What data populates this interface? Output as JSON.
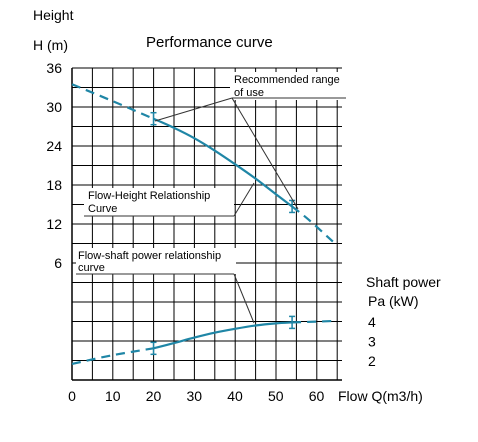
{
  "chart_data": {
    "type": "line",
    "title": "Performance curve",
    "xlabel": "Flow Q(m3/h)",
    "ylabel_left_line1": "Height",
    "ylabel_left_line2": "H (m)",
    "ylabel_right_line1": "Shaft power",
    "ylabel_right_line2": "Pa (kW)",
    "x_ticks": [
      "0",
      "10",
      "20",
      "30",
      "40",
      "50",
      "60"
    ],
    "y_left_ticks": [
      "36",
      "30",
      "24",
      "18",
      "12",
      "6"
    ],
    "y_right_ticks": [
      "4",
      "3",
      "2"
    ],
    "xlim": [
      0,
      66
    ],
    "ylim_left": [
      6,
      36
    ],
    "ylim_right": [
      1.5,
      4.5
    ],
    "grid": true,
    "series": [
      {
        "name": "Flow-Height Relationship Curve",
        "axis": "left",
        "dashed": [
          {
            "x": 0,
            "y": 33.5
          },
          {
            "x": 10,
            "y": 30.9
          },
          {
            "x": 20,
            "y": 28.2
          }
        ],
        "solid": [
          {
            "x": 20,
            "y": 28.2
          },
          {
            "x": 25,
            "y": 26.8
          },
          {
            "x": 30,
            "y": 25.2
          },
          {
            "x": 35,
            "y": 23.3
          },
          {
            "x": 40,
            "y": 21.2
          },
          {
            "x": 45,
            "y": 19.0
          },
          {
            "x": 50,
            "y": 16.6
          },
          {
            "x": 54,
            "y": 14.7
          }
        ],
        "dashed_end": [
          {
            "x": 54,
            "y": 14.7
          },
          {
            "x": 58,
            "y": 12.7
          },
          {
            "x": 64,
            "y": 9.3
          }
        ]
      },
      {
        "name": "Flow-shaft power relationship curve",
        "axis": "right",
        "dashed": [
          {
            "x": 0,
            "y": 1.85
          },
          {
            "x": 10,
            "y": 2.3
          },
          {
            "x": 20,
            "y": 2.65
          }
        ],
        "solid": [
          {
            "x": 20,
            "y": 2.65
          },
          {
            "x": 25,
            "y": 2.92
          },
          {
            "x": 30,
            "y": 3.2
          },
          {
            "x": 35,
            "y": 3.45
          },
          {
            "x": 40,
            "y": 3.65
          },
          {
            "x": 45,
            "y": 3.82
          },
          {
            "x": 50,
            "y": 3.93
          },
          {
            "x": 54,
            "y": 3.98
          }
        ],
        "dashed_end": [
          {
            "x": 54,
            "y": 3.98
          },
          {
            "x": 60,
            "y": 4.02
          },
          {
            "x": 64,
            "y": 4.05
          }
        ]
      }
    ],
    "range_marks": [
      {
        "series": 0,
        "x": 20
      },
      {
        "series": 0,
        "x": 54
      },
      {
        "series": 1,
        "x": 20
      },
      {
        "series": 1,
        "x": 54
      }
    ],
    "annotations": {
      "range_line1": "Recommended range",
      "range_line2": "of use",
      "fh_line1": "Flow-Height Relationship",
      "fh_line2": "Curve",
      "fp_line1": "Flow-shaft power relationship",
      "fp_line2": "curve"
    },
    "colors": {
      "curve": "#1f86a6",
      "grid": "#000000"
    }
  }
}
